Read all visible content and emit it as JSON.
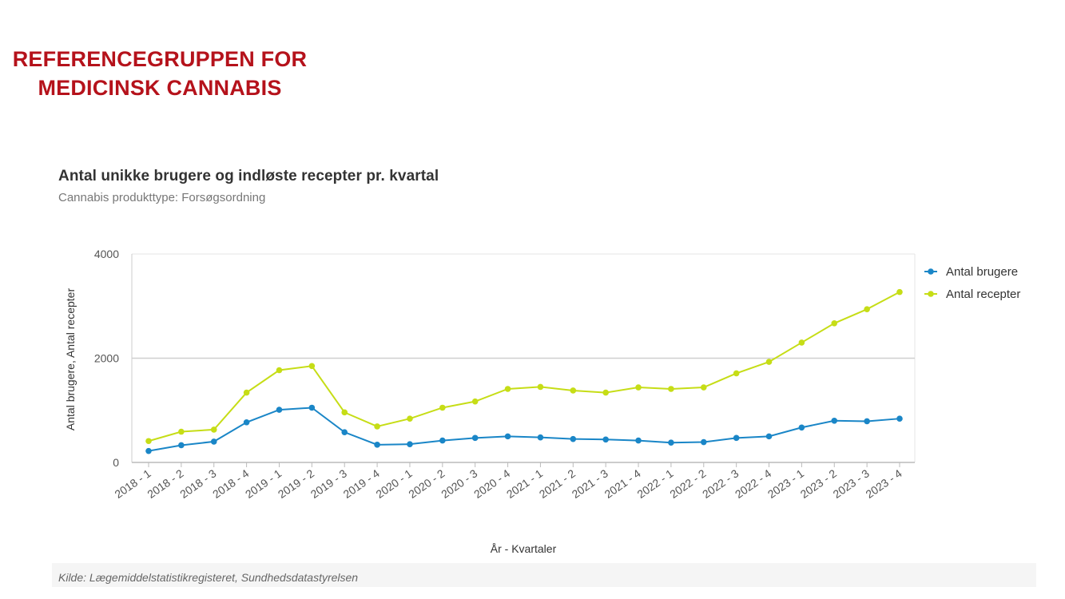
{
  "header": {
    "brand_line1": "REFERENCEGRUPPEN FOR",
    "brand_line2": "MEDICINSK CANNABIS"
  },
  "colors": {
    "brand": "#b5121b",
    "brugere": "#1a86c7",
    "recepter": "#c6dd16"
  },
  "chart_data": {
    "type": "line",
    "title": "Antal unikke brugere og indløste recepter pr. kvartal",
    "subtitle": "Cannabis produkttype: Forsøgsordning",
    "xlabel": "År - Kvartaler",
    "ylabel": "Antal brugere, Antal recepter",
    "ylim": [
      0,
      4000
    ],
    "yticks": [
      0,
      2000,
      4000
    ],
    "grid": "horizontal",
    "legend_position": "top-right",
    "categories": [
      "2018 - 1",
      "2018 - 2",
      "2018 - 3",
      "2018 - 4",
      "2019 - 1",
      "2019 - 2",
      "2019 - 3",
      "2019 - 4",
      "2020 - 1",
      "2020 - 2",
      "2020 - 3",
      "2020 - 4",
      "2021 - 1",
      "2021 - 2",
      "2021 - 3",
      "2021 - 4",
      "2022 - 1",
      "2022 - 2",
      "2022 - 3",
      "2022 - 4",
      "2023 - 1",
      "2023 - 2",
      "2023 - 3",
      "2023 - 4"
    ],
    "series": [
      {
        "name": "Antal brugere",
        "color": "#1a86c7",
        "values": [
          220,
          330,
          400,
          770,
          1010,
          1050,
          580,
          340,
          350,
          420,
          470,
          500,
          480,
          450,
          440,
          420,
          380,
          390,
          470,
          500,
          670,
          800,
          790,
          840
        ]
      },
      {
        "name": "Antal recepter",
        "color": "#c6dd16",
        "values": [
          410,
          590,
          630,
          1340,
          1770,
          1850,
          960,
          690,
          840,
          1050,
          1170,
          1410,
          1450,
          1380,
          1340,
          1440,
          1410,
          1440,
          1710,
          1930,
          2300,
          2670,
          2940,
          3270
        ]
      }
    ]
  },
  "footer": {
    "source": "Kilde: Lægemiddelstatistikregisteret, Sundhedsdatastyrelsen"
  }
}
